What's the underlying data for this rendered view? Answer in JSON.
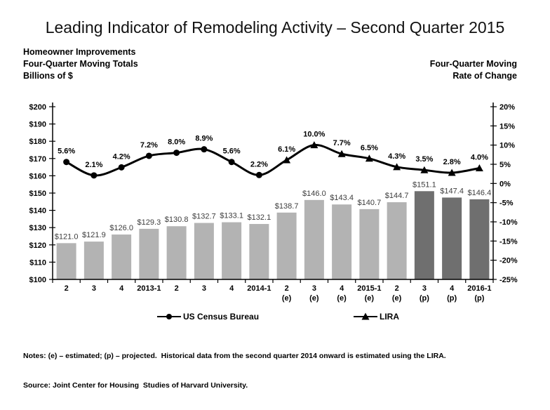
{
  "title": "Leading Indicator of Remodeling Activity – Second Quarter 2015",
  "header_left": {
    "line1": "Homeowner Improvements",
    "line2": "Four-Quarter Moving Totals",
    "line3": "Billions of $"
  },
  "header_right": {
    "line1": "Four-Quarter Moving",
    "line2": "Rate of Change"
  },
  "legend": {
    "census_label": "US Census Bureau",
    "lira_label": "LIRA"
  },
  "notes": {
    "line1": "Notes: (e) – estimated; (p) – projected.  Historical data from the second quarter 2014 onward is estimated using the LIRA.",
    "line2": "Source: Joint Center for Housing  Studies of Harvard University."
  },
  "colors": {
    "bar_light": "#b3b3b3",
    "bar_dark": "#6f6f6f",
    "line": "#000000",
    "axis": "#000000",
    "bar_label": "#3d3d3d"
  },
  "chart_data": {
    "type": "combo bar+line",
    "categories": [
      "2",
      "3",
      "4",
      "2013-1",
      "2",
      "3",
      "4",
      "2014-1",
      "2",
      "3",
      "4",
      "2015-1",
      "2",
      "3",
      "4",
      "2016-1"
    ],
    "category_suffixes": [
      "",
      "",
      "",
      "",
      "",
      "",
      "",
      "",
      "(e)",
      "(e)",
      "(e)",
      "(e)",
      "(e)",
      "(p)",
      "(p)",
      "(p)"
    ],
    "series": [
      {
        "name": "Homeowner Improvements (bars, billions $)",
        "type": "bar",
        "values": [
          121.0,
          121.9,
          126.0,
          129.3,
          130.8,
          132.7,
          133.1,
          132.1,
          138.7,
          146.0,
          143.4,
          140.7,
          144.7,
          151.1,
          147.4,
          146.4
        ],
        "labels": [
          "$121.0",
          "$121.9",
          "$126.0",
          "$129.3",
          "$130.8",
          "$132.7",
          "$133.1",
          "$132.1",
          "$138.7",
          "$146.0",
          "$143.4",
          "$140.7",
          "$144.7",
          "$151.1",
          "$147.4",
          "$146.4"
        ],
        "bar_styles": [
          "light",
          "light",
          "light",
          "light",
          "light",
          "light",
          "light",
          "light",
          "light",
          "light",
          "light",
          "light",
          "light",
          "dark",
          "dark",
          "dark"
        ]
      },
      {
        "name": "Four-Quarter Rate of Change (line, %)",
        "type": "line",
        "values": [
          5.6,
          2.1,
          4.2,
          7.2,
          8.0,
          8.9,
          5.6,
          2.2,
          6.1,
          10.0,
          7.7,
          6.5,
          4.3,
          3.5,
          2.8,
          4.0
        ],
        "labels": [
          "5.6%",
          "2.1%",
          "4.2%",
          "7.2%",
          "8.0%",
          "8.9%",
          "5.6%",
          "2.2%",
          "6.1%",
          "10.0%",
          "7.7%",
          "6.5%",
          "4.3%",
          "3.5%",
          "2.8%",
          "4.0%"
        ],
        "marker_types": [
          "circle",
          "circle",
          "circle",
          "circle",
          "circle",
          "circle",
          "circle",
          "circle",
          "triangle",
          "triangle",
          "triangle",
          "triangle",
          "triangle",
          "triangle",
          "triangle",
          "triangle"
        ]
      }
    ],
    "left_axis": {
      "title": "Billions of $",
      "min": 100,
      "max": 200,
      "step": 10,
      "tick_labels": [
        "$100",
        "$110",
        "$120",
        "$130",
        "$140",
        "$150",
        "$160",
        "$170",
        "$180",
        "$190",
        "$200"
      ]
    },
    "right_axis": {
      "title": "Four-Quarter Moving Rate of Change",
      "min": -25,
      "max": 20,
      "step": 5,
      "tick_labels": [
        "-25%",
        "-20%",
        "-15%",
        "-10%",
        "-5%",
        "0%",
        "5%",
        "10%",
        "15%",
        "20%"
      ]
    },
    "grid": "off",
    "legend_position": "bottom",
    "line_smoothing": "on"
  }
}
